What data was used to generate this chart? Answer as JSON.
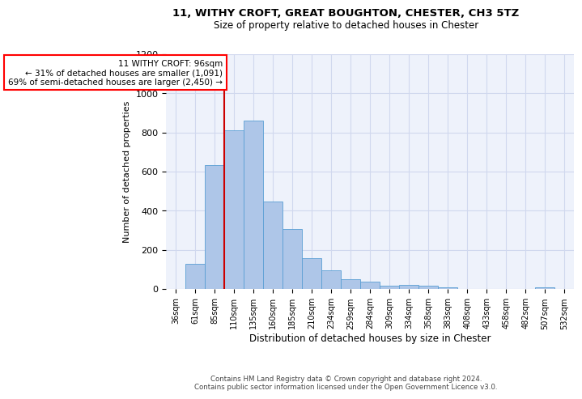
{
  "title_line1": "11, WITHY CROFT, GREAT BOUGHTON, CHESTER, CH3 5TZ",
  "title_line2": "Size of property relative to detached houses in Chester",
  "xlabel": "Distribution of detached houses by size in Chester",
  "ylabel": "Number of detached properties",
  "categories": [
    "36sqm",
    "61sqm",
    "85sqm",
    "110sqm",
    "135sqm",
    "160sqm",
    "185sqm",
    "210sqm",
    "234sqm",
    "259sqm",
    "284sqm",
    "309sqm",
    "334sqm",
    "358sqm",
    "383sqm",
    "408sqm",
    "433sqm",
    "458sqm",
    "482sqm",
    "507sqm",
    "532sqm"
  ],
  "values": [
    0,
    130,
    635,
    810,
    860,
    445,
    305,
    158,
    95,
    50,
    37,
    15,
    20,
    18,
    10,
    0,
    0,
    0,
    0,
    10,
    0
  ],
  "bar_color": "#aec6e8",
  "bar_edge_color": "#5a9fd4",
  "grid_color": "#d0d8ee",
  "annotation_text": "11 WITHY CROFT: 96sqm\n← 31% of detached houses are smaller (1,091)\n69% of semi-detached houses are larger (2,450) →",
  "vline_x": 2.5,
  "vline_color": "#cc0000",
  "ylim": [
    0,
    1200
  ],
  "yticks": [
    0,
    200,
    400,
    600,
    800,
    1000,
    1200
  ],
  "footer_line1": "Contains HM Land Registry data © Crown copyright and database right 2024.",
  "footer_line2": "Contains public sector information licensed under the Open Government Licence v3.0.",
  "background_color": "#eef2fb"
}
